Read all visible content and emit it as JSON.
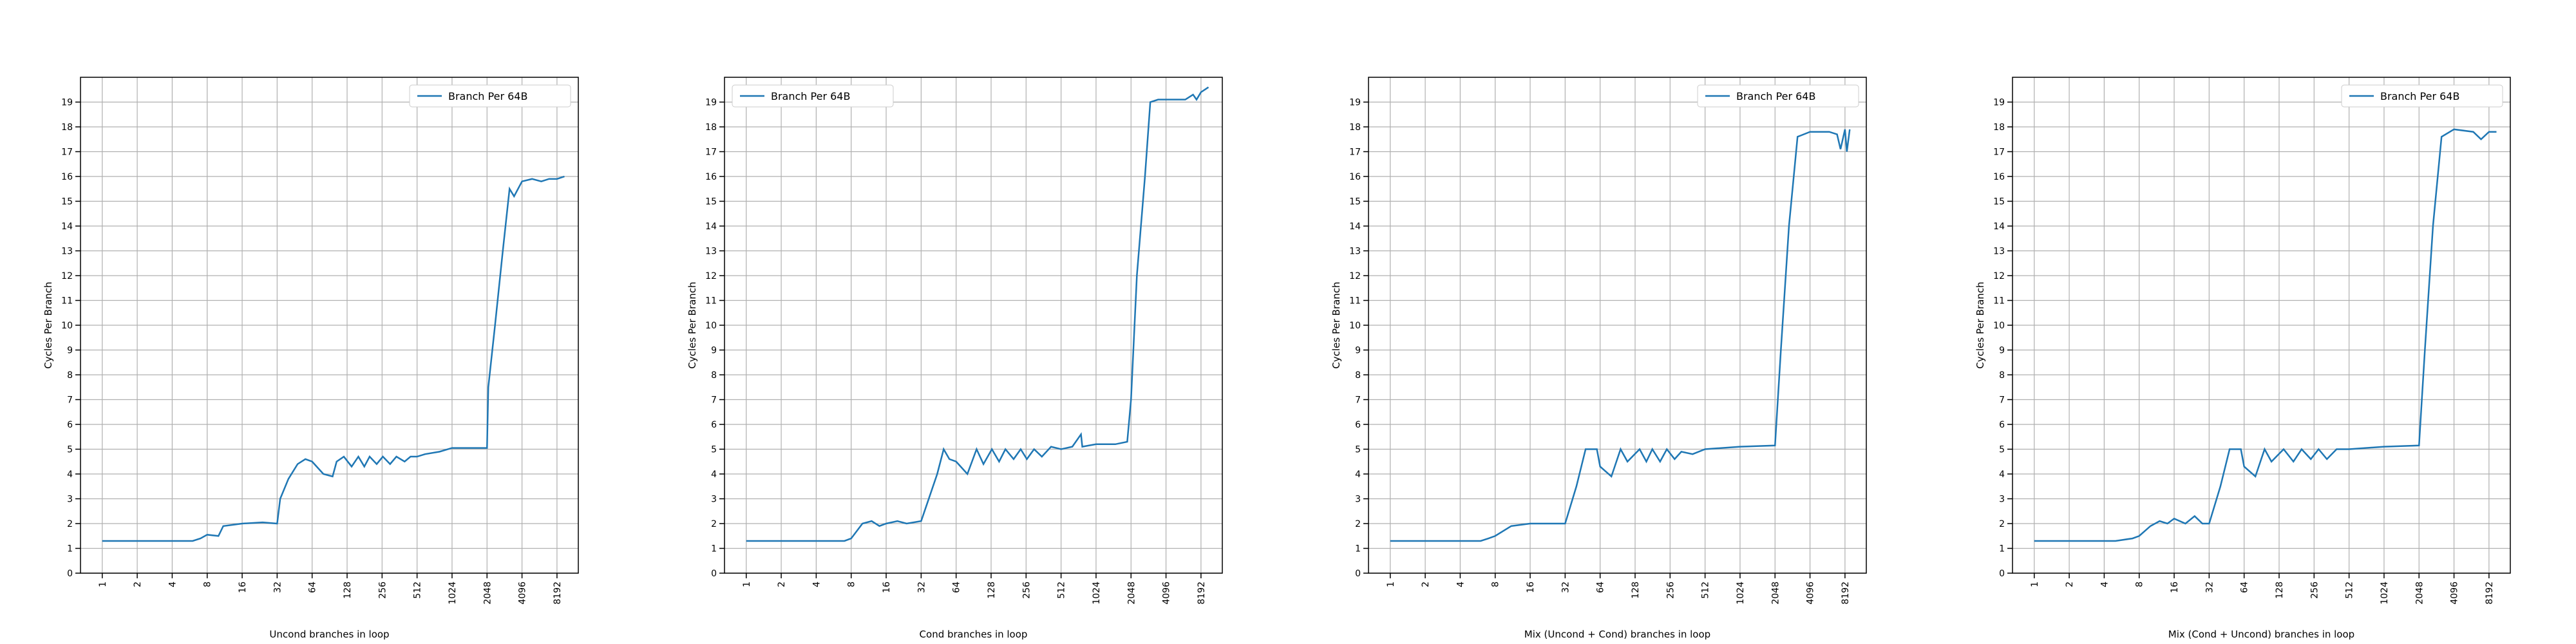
{
  "chart_data": [
    {
      "type": "line",
      "x_label": "Uncond branches in loop",
      "y_label": "Cycles Per Branch",
      "x": [
        1,
        2,
        3,
        4,
        5,
        6,
        7,
        8,
        10,
        11,
        16,
        24,
        32,
        34,
        40,
        48,
        56,
        64,
        80,
        96,
        104,
        120,
        140,
        160,
        180,
        200,
        230,
        260,
        300,
        340,
        400,
        450,
        512,
        600,
        800,
        1024,
        1500,
        2048,
        2100,
        2400,
        2800,
        3200,
        3500,
        4096,
        5000,
        6000,
        7000,
        8192,
        9500
      ],
      "series": [
        {
          "name": "Branch Per 64B",
          "color": "#1f77b4",
          "values": [
            1.3,
            1.3,
            1.3,
            1.3,
            1.3,
            1.3,
            1.4,
            1.55,
            1.5,
            1.9,
            2.0,
            2.05,
            2.0,
            3.0,
            3.8,
            4.4,
            4.6,
            4.5,
            4.0,
            3.9,
            4.5,
            4.7,
            4.3,
            4.7,
            4.3,
            4.7,
            4.4,
            4.7,
            4.4,
            4.7,
            4.5,
            4.7,
            4.7,
            4.8,
            4.9,
            5.05,
            5.05,
            5.05,
            7.5,
            10,
            13,
            15.5,
            15.2,
            15.8,
            15.9,
            15.8,
            15.9,
            15.9,
            16.0
          ]
        }
      ],
      "xlim": [
        0.65,
        12500
      ],
      "ylim": [
        0,
        20
      ],
      "log_x_base": 2,
      "xticks": [
        1,
        2,
        4,
        8,
        16,
        32,
        64,
        128,
        256,
        512,
        1024,
        2048,
        4096,
        8192
      ],
      "yticks": [
        0,
        1,
        2,
        3,
        4,
        5,
        6,
        7,
        8,
        9,
        10,
        11,
        12,
        13,
        14,
        15,
        16,
        17,
        18,
        19
      ],
      "grid": true,
      "legend": "upper right"
    },
    {
      "type": "line",
      "x_label": "Cond branches in loop",
      "y_label": "Cycles Per Branch",
      "x": [
        1,
        2,
        3,
        4,
        5,
        6,
        7,
        8,
        10,
        12,
        14,
        16,
        20,
        24,
        32,
        36,
        44,
        50,
        56,
        64,
        80,
        96,
        110,
        130,
        150,
        170,
        200,
        230,
        260,
        300,
        350,
        420,
        512,
        640,
        760,
        780,
        1024,
        1500,
        1900,
        2048,
        2300,
        2700,
        3000,
        3500,
        4096,
        6000,
        7000,
        7500,
        8192,
        9500
      ],
      "series": [
        {
          "name": "Branch Per 64B",
          "color": "#1f77b4",
          "values": [
            1.3,
            1.3,
            1.3,
            1.3,
            1.3,
            1.3,
            1.3,
            1.4,
            2.0,
            2.1,
            1.9,
            2.0,
            2.1,
            2.0,
            2.1,
            2.8,
            4.0,
            5.0,
            4.6,
            4.5,
            4.0,
            5.0,
            4.4,
            5.0,
            4.5,
            5.0,
            4.6,
            5.0,
            4.6,
            5.0,
            4.7,
            5.1,
            5.0,
            5.1,
            5.6,
            5.1,
            5.2,
            5.2,
            5.3,
            7,
            12,
            16,
            19.0,
            19.1,
            19.1,
            19.1,
            19.3,
            19.1,
            19.4,
            19.6
          ]
        }
      ],
      "xlim": [
        0.65,
        12500
      ],
      "ylim": [
        0,
        20
      ],
      "log_x_base": 2,
      "xticks": [
        1,
        2,
        4,
        8,
        16,
        32,
        64,
        128,
        256,
        512,
        1024,
        2048,
        4096,
        8192
      ],
      "yticks": [
        0,
        1,
        2,
        3,
        4,
        5,
        6,
        7,
        8,
        9,
        10,
        11,
        12,
        13,
        14,
        15,
        16,
        17,
        18,
        19
      ],
      "grid": true,
      "legend": "upper left"
    },
    {
      "type": "line",
      "x_label": "Mix (Uncond + Cond) branches in loop",
      "y_label": "Cycles Per Branch",
      "x": [
        1,
        2,
        4,
        6,
        7,
        8,
        11,
        16,
        32,
        40,
        48,
        60,
        64,
        80,
        96,
        110,
        140,
        160,
        180,
        210,
        240,
        280,
        320,
        400,
        512,
        1024,
        2048,
        2300,
        2700,
        3200,
        4096,
        6000,
        7000,
        7500,
        8192,
        8500,
        9000
      ],
      "series": [
        {
          "name": "Branch Per 64B",
          "color": "#1f77b4",
          "values": [
            1.3,
            1.3,
            1.3,
            1.3,
            1.4,
            1.5,
            1.9,
            2.0,
            2.0,
            3.5,
            5.0,
            5.0,
            4.3,
            3.9,
            5.0,
            4.5,
            5.0,
            4.5,
            5.0,
            4.5,
            5.0,
            4.6,
            4.9,
            4.8,
            5.0,
            5.1,
            5.15,
            9,
            14,
            17.6,
            17.8,
            17.8,
            17.7,
            17.1,
            17.9,
            17.0,
            17.9
          ]
        }
      ],
      "xlim": [
        0.65,
        12500
      ],
      "ylim": [
        0,
        20
      ],
      "log_x_base": 2,
      "xticks": [
        1,
        2,
        4,
        8,
        16,
        32,
        64,
        128,
        256,
        512,
        1024,
        2048,
        4096,
        8192
      ],
      "yticks": [
        0,
        1,
        2,
        3,
        4,
        5,
        6,
        7,
        8,
        9,
        10,
        11,
        12,
        13,
        14,
        15,
        16,
        17,
        18,
        19
      ],
      "grid": true,
      "legend": "upper right"
    },
    {
      "type": "line",
      "x_label": "Mix (Cond + Uncond) branches in loop",
      "y_label": "Cycles Per Branch",
      "x": [
        1,
        2,
        4,
        5,
        7,
        8,
        10,
        12,
        14,
        16,
        20,
        24,
        28,
        32,
        40,
        48,
        60,
        64,
        80,
        96,
        110,
        140,
        170,
        200,
        240,
        280,
        330,
        400,
        512,
        1024,
        2048,
        2300,
        2700,
        3200,
        4096,
        6000,
        7000,
        8192,
        9500
      ],
      "series": [
        {
          "name": "Branch Per 64B",
          "color": "#1f77b4",
          "values": [
            1.3,
            1.3,
            1.3,
            1.3,
            1.4,
            1.5,
            1.9,
            2.1,
            2.0,
            2.2,
            2.0,
            2.3,
            2.0,
            2.0,
            3.5,
            5.0,
            5.0,
            4.3,
            3.9,
            5.0,
            4.5,
            5.0,
            4.5,
            5.0,
            4.6,
            5.0,
            4.6,
            5.0,
            5.0,
            5.1,
            5.15,
            9,
            14,
            17.6,
            17.9,
            17.8,
            17.5,
            17.8,
            17.8
          ]
        }
      ],
      "xlim": [
        0.65,
        12500
      ],
      "ylim": [
        0,
        20
      ],
      "log_x_base": 2,
      "xticks": [
        1,
        2,
        4,
        8,
        16,
        32,
        64,
        128,
        256,
        512,
        1024,
        2048,
        4096,
        8192
      ],
      "yticks": [
        0,
        1,
        2,
        3,
        4,
        5,
        6,
        7,
        8,
        9,
        10,
        11,
        12,
        13,
        14,
        15,
        16,
        17,
        18,
        19
      ],
      "grid": true,
      "legend": "upper right"
    }
  ]
}
